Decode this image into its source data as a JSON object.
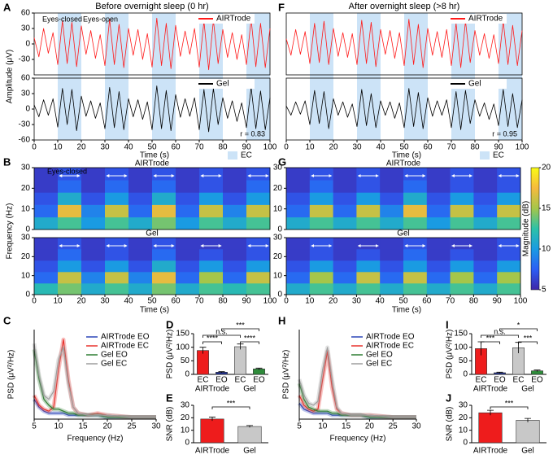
{
  "chart_data": [
    {
      "type": "line",
      "panel": "A",
      "title": "Before overnight sleep (0 hr)",
      "ylabel": "Amplitude (μV)",
      "xlabel": "Time (s)",
      "x": [
        0,
        2,
        4,
        6,
        8,
        10,
        12,
        14,
        16,
        18,
        20,
        22,
        24,
        26,
        28,
        30,
        32,
        34,
        36,
        38,
        40,
        42,
        44,
        46,
        48,
        50,
        52,
        54,
        56,
        58,
        60,
        62,
        64,
        66,
        68,
        70,
        72,
        74,
        76,
        78,
        80,
        82,
        84,
        86,
        88,
        90,
        92,
        94,
        96,
        98,
        100
      ],
      "xlim": [
        0,
        100
      ],
      "xticks": [
        0,
        10,
        20,
        30,
        40,
        50,
        60,
        70,
        80,
        90,
        100
      ],
      "ylim": [
        -60,
        60
      ],
      "shaded_regions": [
        [
          10,
          20
        ],
        [
          30,
          40
        ],
        [
          50,
          60
        ],
        [
          70,
          80
        ],
        [
          90,
          100
        ]
      ],
      "shade_color": "#cce3f7",
      "shade_label": "EC",
      "annotations": [
        "Eyes-closed",
        "Eyes-open",
        "r = 0.83"
      ],
      "series": [
        {
          "name": "AIRTrode",
          "color": "#ff1a1a",
          "yticks": [
            -30,
            0,
            30,
            60
          ],
          "values": [
            12,
            -25,
            30,
            -18,
            22,
            -40,
            45,
            -38,
            42,
            -44,
            35,
            -20,
            26,
            -28,
            18,
            -42,
            48,
            -40,
            38,
            -46,
            30,
            -22,
            28,
            -30,
            20,
            -45,
            50,
            -42,
            40,
            -48,
            36,
            -24,
            25,
            -20,
            30,
            -45,
            44,
            -50,
            46,
            -38,
            28,
            -26,
            22,
            -30,
            18,
            -40,
            48,
            -44,
            40,
            -46,
            30
          ]
        },
        {
          "name": "Gel",
          "color": "#000000",
          "yticks": [
            -60,
            -30,
            0,
            30,
            60
          ],
          "values": [
            8,
            -15,
            18,
            -12,
            20,
            -35,
            40,
            -30,
            38,
            -42,
            25,
            -14,
            16,
            -18,
            12,
            -38,
            42,
            -36,
            34,
            -40,
            20,
            -15,
            18,
            -20,
            14,
            -40,
            45,
            -38,
            36,
            -42,
            28,
            -16,
            20,
            -14,
            22,
            -40,
            38,
            -44,
            40,
            -30,
            22,
            -18,
            16,
            -24,
            12,
            -36,
            42,
            -38,
            35,
            -40,
            22
          ]
        }
      ]
    },
    {
      "type": "line",
      "panel": "F",
      "title": "After overnight sleep (>8 hr)",
      "xlabel": "Time (s)",
      "x": [
        0,
        2,
        4,
        6,
        8,
        10,
        12,
        14,
        16,
        18,
        20,
        22,
        24,
        26,
        28,
        30,
        32,
        34,
        36,
        38,
        40,
        42,
        44,
        46,
        48,
        50,
        52,
        54,
        56,
        58,
        60,
        62,
        64,
        66,
        68,
        70,
        72,
        74,
        76,
        78,
        80,
        82,
        84,
        86,
        88,
        90,
        92,
        94,
        96,
        98,
        100
      ],
      "xlim": [
        0,
        100
      ],
      "xticks": [
        0,
        10,
        20,
        30,
        40,
        50,
        60,
        70,
        80,
        90,
        100
      ],
      "ylim": [
        -60,
        60
      ],
      "shaded_regions": [
        [
          10,
          20
        ],
        [
          30,
          40
        ],
        [
          50,
          60
        ],
        [
          70,
          80
        ],
        [
          90,
          100
        ]
      ],
      "shade_color": "#cce3f7",
      "shade_label": "EC",
      "annotations": [
        "r = 0.95"
      ],
      "series": [
        {
          "name": "AIRTrode",
          "color": "#ff1a1a",
          "values": [
            10,
            -22,
            28,
            -20,
            24,
            -38,
            40,
            -36,
            44,
            -40,
            30,
            -24,
            22,
            -26,
            20,
            -40,
            46,
            -38,
            42,
            -44,
            28,
            -20,
            26,
            -28,
            22,
            -42,
            48,
            -40,
            38,
            -46,
            30,
            -22,
            24,
            -26,
            28,
            -42,
            40,
            -46,
            44,
            -36,
            26,
            -22,
            20,
            -28,
            18,
            -38,
            44,
            -40,
            36,
            -42,
            26
          ]
        },
        {
          "name": "Gel",
          "color": "#000000",
          "values": [
            6,
            -12,
            14,
            -10,
            16,
            -30,
            36,
            -28,
            34,
            -38,
            20,
            -12,
            14,
            -16,
            10,
            -34,
            38,
            -32,
            30,
            -36,
            16,
            -12,
            14,
            -18,
            12,
            -36,
            40,
            -34,
            32,
            -38,
            22,
            -14,
            16,
            -12,
            18,
            -36,
            34,
            -40,
            36,
            -28,
            18,
            -14,
            12,
            -20,
            10,
            -32,
            38,
            -34,
            30,
            -36,
            18
          ]
        }
      ]
    },
    {
      "type": "heatmap",
      "panel": "B",
      "ylabel": "Frequency (Hz)",
      "xlabel": "Time (s)",
      "x": [
        5,
        15,
        25,
        35,
        45,
        55,
        65,
        75,
        85,
        95
      ],
      "y": [
        3,
        9,
        15,
        21,
        27
      ],
      "xlim": [
        0,
        100
      ],
      "xticks": [
        0,
        10,
        20,
        30,
        40,
        50,
        60,
        70,
        80,
        90,
        100
      ],
      "ylim": [
        0,
        30
      ],
      "yticks": [
        0,
        10,
        20,
        30
      ],
      "zlim": [
        5,
        20
      ],
      "colorscale": [
        "#3e26a8",
        "#2c5ef5",
        "#1a9be2",
        "#2dc1a8",
        "#a5c64a",
        "#f6ba3d",
        "#f9fb15"
      ],
      "shaded_regions": [
        [
          10,
          20
        ],
        [
          30,
          40
        ],
        [
          50,
          60
        ],
        [
          70,
          80
        ],
        [
          90,
          100
        ]
      ],
      "annotations": [
        "Eyes-closed"
      ],
      "series": [
        {
          "name": "AIRTrode",
          "z": [
            [
              11,
              13,
              10,
              13,
              11,
              14,
              10,
              13,
              11,
              13
            ],
            [
              8,
              17,
              9,
              16,
              8,
              17,
              8,
              16,
              9,
              16
            ],
            [
              7,
              11,
              7,
              10,
              7,
              11,
              7,
              10,
              7,
              10
            ],
            [
              6,
              8,
              6,
              8,
              6,
              8,
              6,
              7,
              6,
              8
            ],
            [
              6,
              7,
              6,
              7,
              6,
              7,
              6,
              7,
              6,
              7
            ]
          ]
        },
        {
          "name": "Gel",
          "z": [
            [
              12,
              14,
              11,
              13,
              11,
              14,
              11,
              13,
              12,
              13
            ],
            [
              8,
              16,
              9,
              16,
              9,
              17,
              8,
              15,
              8,
              16
            ],
            [
              7,
              10,
              7,
              10,
              7,
              11,
              7,
              10,
              7,
              10
            ],
            [
              6,
              8,
              6,
              7,
              6,
              8,
              6,
              7,
              6,
              7
            ],
            [
              6,
              7,
              6,
              7,
              6,
              7,
              6,
              6,
              6,
              7
            ]
          ]
        }
      ]
    },
    {
      "type": "heatmap",
      "panel": "G",
      "xlabel": "Time (s)",
      "x": [
        5,
        15,
        25,
        35,
        45,
        55,
        65,
        75,
        85,
        95
      ],
      "y": [
        3,
        9,
        15,
        21,
        27
      ],
      "xlim": [
        0,
        100
      ],
      "xticks": [
        0,
        10,
        20,
        30,
        40,
        50,
        60,
        70,
        80,
        90,
        100
      ],
      "ylim": [
        0,
        30
      ],
      "yticks": [
        0,
        10,
        20,
        30
      ],
      "zlim": [
        5,
        20
      ],
      "zticks": [
        5,
        10,
        15,
        20
      ],
      "zlabel": "Magnitude (dB)",
      "colorscale": [
        "#3e26a8",
        "#2c5ef5",
        "#1a9be2",
        "#2dc1a8",
        "#a5c64a",
        "#f6ba3d",
        "#f9fb15"
      ],
      "shaded_regions": [
        [
          10,
          20
        ],
        [
          30,
          40
        ],
        [
          50,
          60
        ],
        [
          70,
          80
        ],
        [
          90,
          100
        ]
      ],
      "series": [
        {
          "name": "AIRTrode",
          "z": [
            [
              11,
              13,
              11,
              13,
              11,
              13,
              10,
              13,
              11,
              13
            ],
            [
              8,
              16,
              8,
              16,
              9,
              17,
              8,
              16,
              8,
              16
            ],
            [
              7,
              10,
              7,
              10,
              7,
              11,
              7,
              10,
              7,
              10
            ],
            [
              6,
              8,
              6,
              7,
              6,
              8,
              6,
              7,
              6,
              7
            ],
            [
              6,
              7,
              6,
              7,
              6,
              7,
              6,
              7,
              6,
              7
            ]
          ]
        },
        {
          "name": "Gel",
          "z": [
            [
              11,
              13,
              11,
              13,
              11,
              13,
              11,
              13,
              11,
              13
            ],
            [
              8,
              15,
              8,
              16,
              8,
              16,
              8,
              15,
              8,
              15
            ],
            [
              7,
              10,
              7,
              10,
              7,
              10,
              7,
              10,
              7,
              10
            ],
            [
              6,
              7,
              6,
              7,
              6,
              8,
              6,
              7,
              6,
              7
            ],
            [
              6,
              7,
              6,
              6,
              6,
              7,
              6,
              6,
              6,
              7
            ]
          ]
        }
      ]
    },
    {
      "type": "line",
      "panel": "C",
      "ylabel": "PSD (μV²/Hz)",
      "xlabel": "Frequency (Hz)",
      "x": [
        5,
        6,
        7,
        8,
        9,
        10,
        11,
        12,
        13,
        14,
        16,
        18,
        20,
        25,
        30
      ],
      "xlim": [
        5,
        30
      ],
      "xticks": [
        5,
        10,
        15,
        20,
        25,
        30
      ],
      "ylim": [
        0,
        45
      ],
      "series": [
        {
          "name": "AIRTrode EO",
          "color": "#2b45b8",
          "values": [
            10,
            6,
            4,
            3,
            3,
            3,
            3,
            2,
            2,
            2,
            2,
            2,
            1,
            1,
            1
          ]
        },
        {
          "name": "AIRTrode EC",
          "color": "#e8322d",
          "values": [
            12,
            7,
            5,
            4,
            6,
            25,
            40,
            20,
            6,
            3,
            2,
            3,
            2,
            1,
            1
          ]
        },
        {
          "name": "Gel EO",
          "color": "#2e7d32",
          "values": [
            35,
            20,
            10,
            7,
            5,
            5,
            4,
            3,
            3,
            2,
            2,
            2,
            1,
            1,
            1
          ]
        },
        {
          "name": "Gel EC",
          "color": "#9e9e9e",
          "values": [
            38,
            22,
            12,
            10,
            14,
            30,
            36,
            18,
            6,
            3,
            2,
            2,
            2,
            1,
            1
          ]
        }
      ]
    },
    {
      "type": "bar",
      "panel": "D",
      "ylabel": "PSD (μV²/Hz)",
      "categories": [
        "EC",
        "EO",
        "EC",
        "EO"
      ],
      "group_labels": [
        "AIRTrode",
        "Gel"
      ],
      "values": [
        88,
        8,
        102,
        20
      ],
      "errors": [
        12,
        2,
        10,
        3
      ],
      "colors": [
        "#ee1c1c",
        "#1f2f8f",
        "#c8c8c8",
        "#2e8b3a"
      ],
      "ylim": [
        0,
        150
      ],
      "yticks": [
        0,
        50,
        100,
        150
      ],
      "annotations": [
        "****",
        "n.s.",
        "***",
        "****"
      ]
    },
    {
      "type": "bar",
      "panel": "E",
      "ylabel": "SNR (dB)",
      "categories": [
        "AIRTrode",
        "Gel"
      ],
      "values": [
        19,
        13
      ],
      "errors": [
        1.5,
        0.8
      ],
      "colors": [
        "#ee1c1c",
        "#c8c8c8"
      ],
      "ylim": [
        0,
        30
      ],
      "yticks": [
        0,
        10,
        20,
        30
      ],
      "annotations": [
        "***"
      ]
    },
    {
      "type": "line",
      "panel": "H",
      "ylabel": "PSD (μV²/Hz)",
      "xlabel": "Frequency (Hz)",
      "x": [
        5,
        6,
        7,
        8,
        9,
        10,
        11,
        12,
        13,
        14,
        16,
        18,
        20,
        25,
        30
      ],
      "xlim": [
        5,
        30
      ],
      "xticks": [
        5,
        10,
        15,
        20,
        25,
        30
      ],
      "ylim": [
        0,
        45
      ],
      "series": [
        {
          "name": "AIRTrode EO",
          "color": "#2b45b8",
          "values": [
            8,
            5,
            4,
            3,
            3,
            3,
            3,
            2,
            2,
            2,
            2,
            2,
            1,
            1,
            1
          ]
        },
        {
          "name": "AIRTrode EC",
          "color": "#e8322d",
          "values": [
            12,
            7,
            5,
            4,
            5,
            20,
            34,
            16,
            5,
            3,
            2,
            2,
            2,
            1,
            1
          ]
        },
        {
          "name": "Gel EO",
          "color": "#2e7d32",
          "values": [
            18,
            10,
            6,
            5,
            4,
            4,
            4,
            3,
            3,
            2,
            2,
            2,
            1,
            1,
            1
          ]
        },
        {
          "name": "Gel EC",
          "color": "#9e9e9e",
          "values": [
            20,
            12,
            8,
            7,
            9,
            25,
            36,
            20,
            6,
            3,
            2,
            2,
            2,
            1,
            1
          ]
        }
      ]
    },
    {
      "type": "bar",
      "panel": "I",
      "ylabel": "PSD (μV²/Hz)",
      "categories": [
        "EC",
        "EO",
        "EC",
        "EO"
      ],
      "group_labels": [
        "AIRTrode",
        "Gel"
      ],
      "values": [
        95,
        6,
        98,
        13
      ],
      "errors": [
        25,
        2,
        20,
        3
      ],
      "colors": [
        "#ee1c1c",
        "#1f2f8f",
        "#c8c8c8",
        "#2e8b3a"
      ],
      "ylim": [
        0,
        150
      ],
      "yticks": [
        0,
        50,
        100,
        150
      ],
      "annotations": [
        "***",
        "n.s.",
        "*",
        "***"
      ]
    },
    {
      "type": "bar",
      "panel": "J",
      "ylabel": "SNR (dB)",
      "categories": [
        "AIRTrode",
        "Gel"
      ],
      "values": [
        24,
        18
      ],
      "errors": [
        2,
        1.5
      ],
      "colors": [
        "#ee1c1c",
        "#c8c8c8"
      ],
      "ylim": [
        0,
        30
      ],
      "yticks": [
        0,
        10,
        20,
        30
      ],
      "annotations": [
        "***"
      ]
    }
  ]
}
